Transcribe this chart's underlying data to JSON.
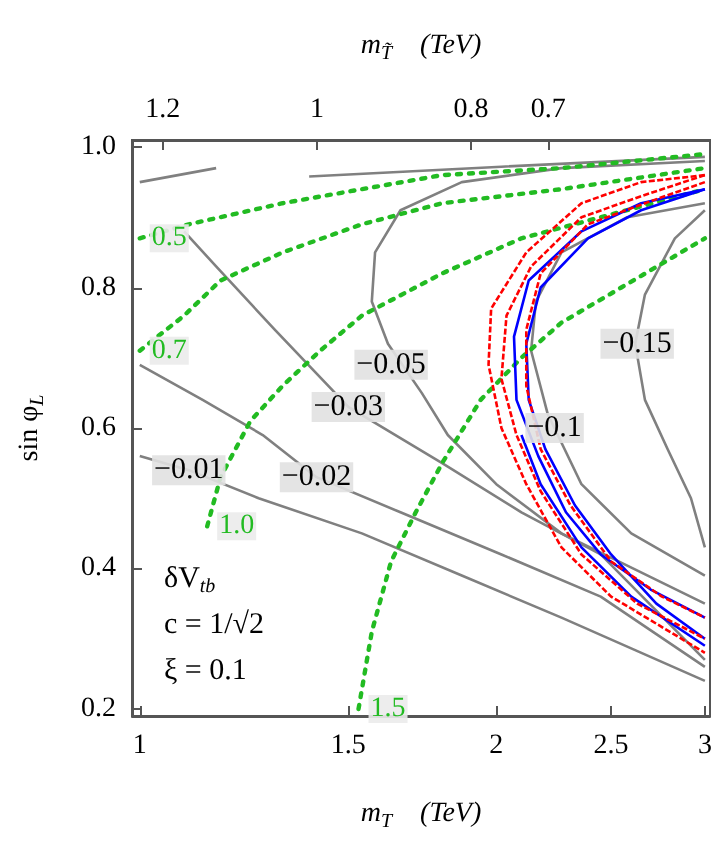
{
  "chart_data": {
    "type": "line",
    "xlabel": "m$_{T}$    (TeV)",
    "x2label": "m$_{T̃}$    (TeV)",
    "ylabel": "sin φ$_{L}$",
    "log": "x",
    "xlim": [
      0.985,
      3.03
    ],
    "xticks": [
      1,
      1.5,
      2,
      2.5,
      3
    ],
    "x2lim": [
      1.24,
      0.49
    ],
    "x2ticks": [
      1.2,
      1,
      0.8,
      0.7
    ],
    "ylim": [
      0.19,
      1.01
    ],
    "yticks": [
      0.2,
      0.4,
      0.6,
      0.8,
      {
        "value": 1,
        "label": "1.0"
      }
    ],
    "series": [
      {
        "color": "#808080",
        "line_style": "solid",
        "x": [
          1.0,
          1.1,
          1.26,
          1.54,
          1.87,
          2.27,
          3.0
        ],
        "values": [
          0.56,
          0.54,
          0.5,
          0.45,
          0.39,
          0.33,
          0.24
        ]
      },
      {
        "color": "#808080",
        "line_style": "solid",
        "x": [
          1.0,
          1.13,
          1.27,
          1.41,
          1.66,
          2.02,
          2.45,
          3.0
        ],
        "values": [
          0.69,
          0.64,
          0.59,
          0.53,
          0.48,
          0.42,
          0.36,
          0.26
        ]
      },
      {
        "color": "#808080",
        "line_style": "solid",
        "x": [
          1.09,
          1.16,
          1.3,
          1.5,
          1.8,
          2.1,
          2.45,
          3.0
        ],
        "values": [
          0.88,
          0.83,
          0.74,
          0.63,
          0.55,
          0.48,
          0.42,
          0.27
        ]
      },
      {
        "color": "#808080",
        "line_style": "solid",
        "x": [
          1.0,
          1.16
        ],
        "values": [
          0.95,
          0.97
        ]
      },
      {
        "color": "#808080",
        "line_style": "solid",
        "x": [
          1.39,
          2.02,
          3.0
        ],
        "values": [
          0.958,
          0.972,
          0.986
        ]
      },
      {
        "color": "#808080",
        "line_style": "solid",
        "x": [
          3.0,
          2.27,
          1.87,
          1.66,
          1.58,
          1.57,
          1.62,
          1.73,
          1.82,
          2.0,
          2.27,
          3.0
        ],
        "values": [
          0.98,
          0.97,
          0.95,
          0.91,
          0.85,
          0.78,
          0.72,
          0.65,
          0.59,
          0.52,
          0.45,
          0.35
        ]
      },
      {
        "color": "#808080",
        "line_style": "solid",
        "x": [
          3.0,
          2.58,
          2.27,
          2.16,
          2.14,
          2.21,
          2.36,
          2.6,
          3.0
        ],
        "values": [
          0.92,
          0.9,
          0.85,
          0.78,
          0.71,
          0.62,
          0.52,
          0.45,
          0.39
        ]
      },
      {
        "color": "#808080",
        "line_style": "solid",
        "x": [
          3.0,
          2.83,
          2.67,
          2.62,
          2.67,
          2.79,
          2.92,
          3.0
        ],
        "values": [
          0.91,
          0.87,
          0.79,
          0.72,
          0.64,
          0.57,
          0.5,
          0.43
        ]
      },
      {
        "name": "0.5",
        "color": "#22bb22",
        "line_style": "dotted",
        "x": [
          1.0,
          1.1,
          1.32,
          1.54,
          1.8,
          2.27,
          3.0
        ],
        "values": [
          0.87,
          0.89,
          0.92,
          0.94,
          0.96,
          0.97,
          0.99
        ]
      },
      {
        "name": "0.7",
        "color": "#22bb22",
        "line_style": "dotted",
        "x": [
          1.0,
          1.09,
          1.17,
          1.32,
          1.54,
          1.8,
          2.27,
          3.0
        ],
        "values": [
          0.71,
          0.76,
          0.81,
          0.85,
          0.89,
          0.92,
          0.94,
          0.97
        ]
      },
      {
        "name": "1.0",
        "color": "#22bb22",
        "line_style": "dotted",
        "x": [
          1.14,
          1.17,
          1.24,
          1.32,
          1.42,
          1.54,
          1.8,
          2.1,
          2.45,
          3.0
        ],
        "values": [
          0.46,
          0.53,
          0.61,
          0.66,
          0.71,
          0.76,
          0.82,
          0.87,
          0.9,
          0.94
        ]
      },
      {
        "name": "1.5",
        "color": "#22bb22",
        "line_style": "dotted",
        "x": [
          1.53,
          1.57,
          1.63,
          1.71,
          1.8,
          1.94,
          2.1,
          2.27,
          2.55,
          3.0
        ],
        "values": [
          0.2,
          0.31,
          0.41,
          0.48,
          0.55,
          0.64,
          0.7,
          0.75,
          0.8,
          0.87
        ]
      },
      {
        "color": "#ff0000",
        "line_style": "dashed",
        "x": [
          3.0,
          2.65,
          2.36,
          2.12,
          1.98,
          1.97,
          2.02,
          2.12,
          2.27,
          2.5,
          3.0
        ],
        "values": [
          0.96,
          0.95,
          0.92,
          0.85,
          0.77,
          0.69,
          0.6,
          0.52,
          0.43,
          0.36,
          0.28
        ]
      },
      {
        "color": "#ff0000",
        "line_style": "dashed",
        "x": [
          3.0,
          2.65,
          2.36,
          2.14,
          2.04,
          2.02,
          2.08,
          2.18,
          2.36,
          2.63,
          3.0
        ],
        "values": [
          0.96,
          0.93,
          0.9,
          0.83,
          0.76,
          0.67,
          0.59,
          0.51,
          0.42,
          0.35,
          0.3
        ]
      },
      {
        "color": "#ff0000",
        "line_style": "dashed",
        "x": [
          3.0,
          2.67,
          2.39,
          2.18,
          2.12,
          2.12,
          2.18,
          2.31,
          2.5,
          2.76,
          3.0
        ],
        "values": [
          0.95,
          0.92,
          0.89,
          0.82,
          0.74,
          0.66,
          0.57,
          0.49,
          0.41,
          0.36,
          0.33
        ]
      },
      {
        "color": "#0000ff",
        "line_style": "solid",
        "x": [
          3.0,
          2.65,
          2.36,
          2.13,
          2.07,
          2.08,
          2.17,
          2.29,
          2.45,
          2.7,
          3.0
        ],
        "values": [
          0.94,
          0.92,
          0.88,
          0.81,
          0.73,
          0.64,
          0.56,
          0.48,
          0.42,
          0.37,
          0.33
        ]
      },
      {
        "color": "#0000ff",
        "line_style": "solid",
        "x": [
          3.0,
          2.65,
          2.39,
          2.18,
          2.12,
          2.13,
          2.2,
          2.33,
          2.5,
          2.73,
          3.0
        ],
        "values": [
          0.94,
          0.91,
          0.87,
          0.8,
          0.72,
          0.64,
          0.57,
          0.49,
          0.42,
          0.35,
          0.3
        ]
      },
      {
        "color": "#0000ff",
        "line_style": "solid",
        "x": [
          2.1,
          2.18,
          2.36,
          2.6,
          3.0
        ],
        "values": [
          0.59,
          0.52,
          0.43,
          0.36,
          0.29
        ]
      }
    ],
    "annotations": [
      {
        "text": "−0.01",
        "x": 1.1,
        "y": 0.54
      },
      {
        "text": "−0.02",
        "x": 1.41,
        "y": 0.53
      },
      {
        "text": "−0.03",
        "x": 1.5,
        "y": 0.63
      },
      {
        "text": "−0.05",
        "x": 1.63,
        "y": 0.69
      },
      {
        "text": "−0.1",
        "x": 2.24,
        "y": 0.6
      },
      {
        "text": "−0.15",
        "x": 2.63,
        "y": 0.72
      },
      "δV$_{tb}$",
      "c = 1/√2",
      "ξ = 0.1"
    ]
  }
}
